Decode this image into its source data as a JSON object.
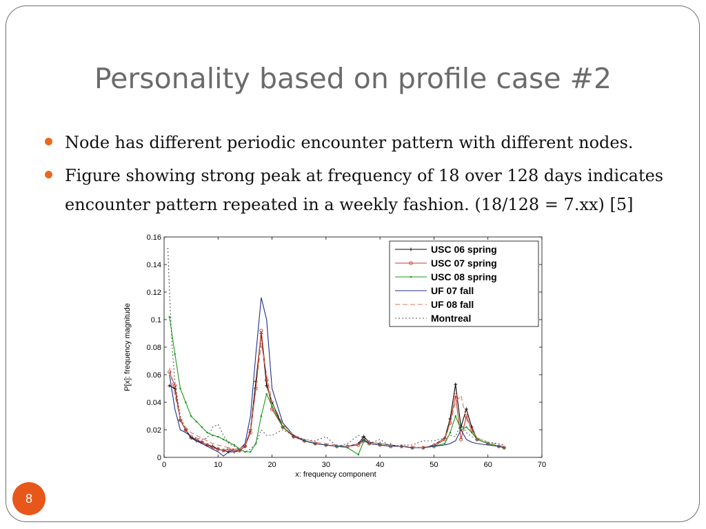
{
  "slide": {
    "title": "Personality based on profile case #2",
    "bullets": [
      "Node has different periodic encounter pattern with different nodes.",
      "Figure showing strong peak at frequency of 18 over 128 days indicates encounter pattern repeated in a weekly fashion. (18/128 = 7.xx) [5]"
    ],
    "page_number": "8",
    "colors": {
      "accent": "#e8571a",
      "title": "#6b6b6b"
    }
  },
  "chart_data": {
    "type": "line",
    "title": "",
    "xlabel": "x: frequency component",
    "ylabel": "P[x]: frequency magnitude",
    "xlim": [
      0,
      70
    ],
    "ylim": [
      0,
      0.16
    ],
    "xticks": [
      "0",
      "10",
      "20",
      "30",
      "40",
      "50",
      "60",
      "70"
    ],
    "yticks": [
      "0",
      "0.02",
      "0.04",
      "0.06",
      "0.08",
      "0.1",
      "0.12",
      "0.14",
      "0.16"
    ],
    "legend_position": "top-right",
    "grid": false,
    "series": [
      {
        "name": "USC 06 spring",
        "color": "#000000",
        "dash": "",
        "marker": "plus",
        "x": [
          1,
          2,
          3,
          4,
          5,
          6,
          7,
          8,
          9,
          10,
          11,
          12,
          13,
          14,
          15,
          16,
          17,
          18,
          19,
          20,
          22,
          24,
          26,
          28,
          30,
          32,
          34,
          36,
          37,
          38,
          40,
          42,
          44,
          46,
          48,
          50,
          52,
          53,
          54,
          55,
          56,
          57,
          58,
          60,
          62,
          63
        ],
        "y": [
          0.052,
          0.05,
          0.027,
          0.02,
          0.014,
          0.012,
          0.011,
          0.009,
          0.008,
          0.006,
          0.005,
          0.004,
          0.004,
          0.005,
          0.008,
          0.02,
          0.055,
          0.09,
          0.052,
          0.04,
          0.022,
          0.015,
          0.012,
          0.01,
          0.009,
          0.008,
          0.008,
          0.01,
          0.015,
          0.011,
          0.01,
          0.009,
          0.008,
          0.007,
          0.007,
          0.009,
          0.014,
          0.028,
          0.053,
          0.022,
          0.035,
          0.022,
          0.013,
          0.01,
          0.008,
          0.007
        ]
      },
      {
        "name": "USC 07 spring",
        "color": "#c0392b",
        "dash": "",
        "marker": "circle",
        "x": [
          1,
          2,
          3,
          4,
          5,
          6,
          7,
          8,
          9,
          10,
          11,
          12,
          13,
          14,
          15,
          16,
          17,
          18,
          19,
          20,
          22,
          24,
          26,
          28,
          30,
          32,
          34,
          36,
          37,
          38,
          40,
          42,
          44,
          46,
          48,
          50,
          52,
          53,
          54,
          55,
          56,
          57,
          58,
          60,
          62,
          63
        ],
        "y": [
          0.062,
          0.052,
          0.027,
          0.02,
          0.015,
          0.013,
          0.011,
          0.009,
          0.007,
          0.006,
          0.005,
          0.006,
          0.005,
          0.005,
          0.008,
          0.018,
          0.05,
          0.092,
          0.056,
          0.035,
          0.022,
          0.015,
          0.012,
          0.01,
          0.009,
          0.008,
          0.008,
          0.009,
          0.012,
          0.01,
          0.009,
          0.008,
          0.008,
          0.007,
          0.007,
          0.008,
          0.013,
          0.025,
          0.045,
          0.013,
          0.03,
          0.02,
          0.013,
          0.01,
          0.008,
          0.007
        ]
      },
      {
        "name": "USC 08 spring",
        "color": "#1a9a1a",
        "dash": "",
        "marker": "dot",
        "x": [
          1,
          2,
          3,
          4,
          5,
          6,
          7,
          8,
          9,
          10,
          11,
          12,
          13,
          14,
          15,
          16,
          17,
          18,
          19,
          20,
          22,
          24,
          26,
          28,
          30,
          32,
          34,
          36,
          37,
          38,
          40,
          42,
          44,
          46,
          48,
          50,
          52,
          53,
          54,
          55,
          56,
          57,
          58,
          60,
          62,
          63
        ],
        "y": [
          0.102,
          0.075,
          0.05,
          0.04,
          0.03,
          0.026,
          0.022,
          0.018,
          0.016,
          0.015,
          0.013,
          0.011,
          0.009,
          0.006,
          0.004,
          0.004,
          0.01,
          0.03,
          0.046,
          0.037,
          0.022,
          0.016,
          0.012,
          0.01,
          0.009,
          0.008,
          0.007,
          0.002,
          0.012,
          0.01,
          0.009,
          0.008,
          0.008,
          0.007,
          0.007,
          0.008,
          0.01,
          0.018,
          0.03,
          0.02,
          0.022,
          0.018,
          0.013,
          0.01,
          0.008,
          0.007
        ]
      },
      {
        "name": "UF 07 fall",
        "color": "#1c2d8c",
        "dash": "",
        "marker": "none",
        "x": [
          1,
          2,
          3,
          4,
          5,
          6,
          7,
          8,
          9,
          10,
          11,
          12,
          13,
          14,
          15,
          16,
          17,
          18,
          19,
          20,
          22,
          24,
          26,
          28,
          30,
          32,
          34,
          36,
          37,
          38,
          40,
          42,
          44,
          46,
          48,
          50,
          52,
          53,
          54,
          55,
          56,
          57,
          58,
          60,
          62,
          63
        ],
        "y": [
          0.06,
          0.035,
          0.02,
          0.018,
          0.015,
          0.012,
          0.01,
          0.008,
          0.006,
          0.004,
          0.001,
          0.004,
          0.006,
          0.006,
          0.01,
          0.03,
          0.075,
          0.116,
          0.1,
          0.05,
          0.025,
          0.016,
          0.012,
          0.01,
          0.009,
          0.008,
          0.008,
          0.01,
          0.013,
          0.01,
          0.009,
          0.008,
          0.008,
          0.007,
          0.007,
          0.008,
          0.009,
          0.01,
          0.012,
          0.02,
          0.013,
          0.011,
          0.01,
          0.009,
          0.008,
          0.007
        ]
      },
      {
        "name": "UF 08 fall",
        "color": "#d9735f",
        "dash": "7,4",
        "marker": "none",
        "x": [
          1,
          2,
          3,
          4,
          5,
          6,
          7,
          8,
          9,
          10,
          11,
          12,
          13,
          14,
          15,
          16,
          17,
          18,
          19,
          20,
          22,
          24,
          26,
          28,
          30,
          32,
          34,
          36,
          37,
          38,
          40,
          42,
          44,
          46,
          48,
          50,
          52,
          53,
          54,
          55,
          56,
          57,
          58,
          60,
          62,
          63
        ],
        "y": [
          0.065,
          0.045,
          0.028,
          0.022,
          0.018,
          0.016,
          0.014,
          0.012,
          0.01,
          0.009,
          0.008,
          0.007,
          0.006,
          0.006,
          0.009,
          0.02,
          0.05,
          0.083,
          0.06,
          0.04,
          0.024,
          0.016,
          0.013,
          0.011,
          0.01,
          0.009,
          0.008,
          0.01,
          0.014,
          0.011,
          0.01,
          0.009,
          0.008,
          0.008,
          0.007,
          0.009,
          0.014,
          0.025,
          0.04,
          0.045,
          0.028,
          0.02,
          0.014,
          0.011,
          0.009,
          0.008
        ]
      },
      {
        "name": "Montreal",
        "color": "#555555",
        "dash": "2,3",
        "marker": "none",
        "x": [
          0.7,
          1,
          1.5,
          2,
          3,
          4,
          5,
          6,
          7,
          8,
          9,
          10,
          11,
          12,
          13,
          14,
          15,
          16,
          17,
          18,
          19,
          20,
          22,
          24,
          26,
          28,
          30,
          32,
          34,
          36,
          37,
          38,
          40,
          42,
          44,
          46,
          48,
          50,
          52,
          53,
          54,
          55,
          56,
          57,
          58,
          60,
          62,
          63
        ],
        "y": [
          0.152,
          0.12,
          0.08,
          0.055,
          0.03,
          0.02,
          0.015,
          0.014,
          0.013,
          0.014,
          0.022,
          0.024,
          0.016,
          0.01,
          0.008,
          0.006,
          0.004,
          0.006,
          0.01,
          0.02,
          0.016,
          0.016,
          0.02,
          0.016,
          0.013,
          0.012,
          0.015,
          0.008,
          0.01,
          0.016,
          0.014,
          0.01,
          0.013,
          0.008,
          0.009,
          0.009,
          0.012,
          0.012,
          0.014,
          0.016,
          0.015,
          0.025,
          0.018,
          0.015,
          0.014,
          0.011,
          0.01,
          0.009
        ]
      }
    ]
  }
}
